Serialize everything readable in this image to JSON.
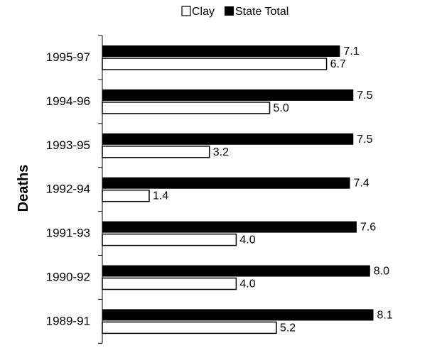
{
  "chart_data": {
    "type": "bar",
    "orientation": "horizontal",
    "categories": [
      "1995-97",
      "1994-96",
      "1993-95",
      "1992-94",
      "1991-93",
      "1990-92",
      "1989-91"
    ],
    "series": [
      {
        "name": "State Total",
        "color": "#000000",
        "values": [
          7.1,
          7.5,
          7.5,
          7.4,
          7.6,
          8.0,
          8.1
        ],
        "labels": [
          "7.1",
          "7.5",
          "7.5",
          "7.4",
          "7.6",
          "8.0",
          "8.1"
        ]
      },
      {
        "name": "Clay",
        "color": "#ffffff",
        "values": [
          6.7,
          5.0,
          3.2,
          1.4,
          4.0,
          4.0,
          5.2
        ],
        "labels": [
          "6.7",
          "5.0",
          "3.2",
          "1.4",
          "4.0",
          "4.0",
          "5.2"
        ]
      }
    ],
    "ylabel": "Deaths",
    "xlim": [
      0,
      8.1
    ],
    "grid": false,
    "legend_position": "top",
    "legend_order": [
      "Clay",
      "State Total"
    ]
  }
}
